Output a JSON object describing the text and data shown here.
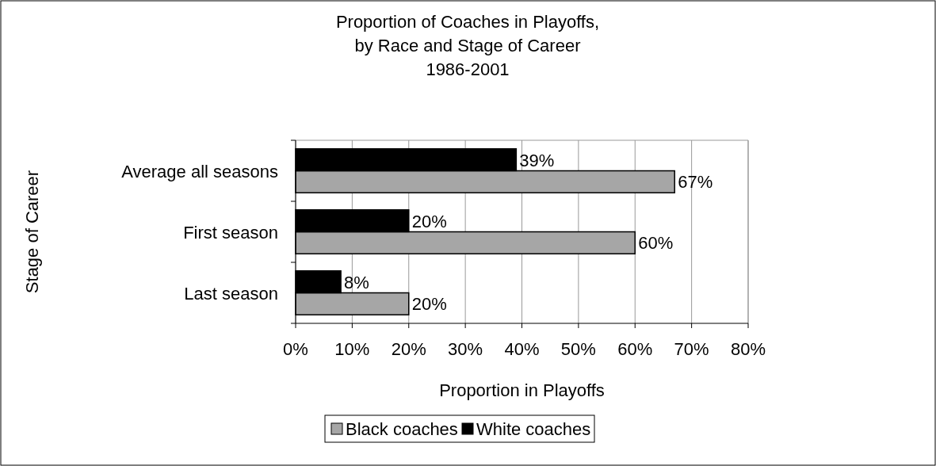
{
  "chart_data": {
    "type": "bar",
    "orientation": "horizontal",
    "title": "Proportion of Coaches in Playoffs,\nby Race and Stage of Career\n1986-2001",
    "xlabel": "Proportion in Playoffs",
    "ylabel": "Stage of Career",
    "categories": [
      "Average all seasons",
      "First season",
      "Last season"
    ],
    "series": [
      {
        "name": "Black coaches",
        "color": "#a6a6a6",
        "values": [
          67,
          60,
          20
        ],
        "value_labels": [
          "67%",
          "60%",
          "20%"
        ]
      },
      {
        "name": "White coaches",
        "color": "#000000",
        "values": [
          39,
          20,
          8
        ],
        "value_labels": [
          "39%",
          "20%",
          "8%"
        ]
      }
    ],
    "xlim": [
      0,
      80
    ],
    "xticks": [
      {
        "value": 0,
        "label": "0%"
      },
      {
        "value": 10,
        "label": "10%"
      },
      {
        "value": 20,
        "label": "20%"
      },
      {
        "value": 30,
        "label": "30%"
      },
      {
        "value": 40,
        "label": "40%"
      },
      {
        "value": 50,
        "label": "50%"
      },
      {
        "value": 60,
        "label": "60%"
      },
      {
        "value": 70,
        "label": "70%"
      },
      {
        "value": 80,
        "label": "80%"
      }
    ],
    "grid": "x",
    "legend": "bottom"
  }
}
